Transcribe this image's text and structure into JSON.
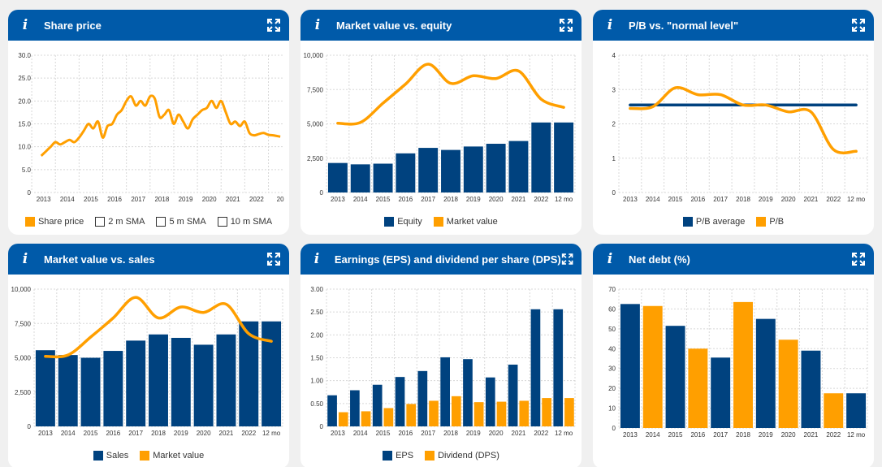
{
  "colors": {
    "navy": "#00427f",
    "orange": "#ff9f00",
    "header": "#005aa9"
  },
  "cards": [
    {
      "title": "Share price",
      "chart_data": {
        "type": "line",
        "x_ticks": [
          "2013",
          "2014",
          "2015",
          "2016",
          "2017",
          "2018",
          "2019",
          "2020",
          "2021",
          "2022",
          "20"
        ],
        "y_ticks": [
          "0",
          "5.0",
          "10.0",
          "15.0",
          "20.0",
          "25.0",
          "30.0"
        ],
        "ylim": [
          0,
          30
        ],
        "series": [
          {
            "name": "Share price",
            "color": "#ff9f00",
            "type": "line",
            "x": [
              2012.9,
              2013.1,
              2013.3,
              2013.5,
              2013.7,
              2013.9,
              2014.1,
              2014.3,
              2014.5,
              2014.7,
              2014.9,
              2015.1,
              2015.3,
              2015.5,
              2015.7,
              2015.9,
              2016.1,
              2016.3,
              2016.5,
              2016.7,
              2016.9,
              2017.1,
              2017.3,
              2017.5,
              2017.7,
              2017.9,
              2018.1,
              2018.3,
              2018.5,
              2018.7,
              2018.9,
              2019.1,
              2019.3,
              2019.5,
              2019.7,
              2019.9,
              2020.1,
              2020.3,
              2020.5,
              2020.7,
              2020.9,
              2021.1,
              2021.3,
              2021.5,
              2021.7,
              2021.9,
              2022.1,
              2022.3,
              2022.5,
              2022.7,
              2022.9,
              2023.0
            ],
            "values": [
              8,
              9,
              10,
              11,
              10.5,
              11,
              11.5,
              11,
              12,
              13.5,
              15,
              14,
              15.5,
              12,
              14.5,
              15,
              17,
              18,
              20,
              21,
              19,
              20,
              19,
              21,
              20.5,
              16.5,
              17,
              18,
              15,
              17,
              15.5,
              14,
              16,
              17,
              18,
              18.5,
              20,
              18.5,
              20,
              17.5,
              15,
              15.5,
              14.5,
              15.5,
              13,
              12.5,
              12.8,
              13,
              12.6,
              12.5,
              12.3,
              12.2
            ]
          },
          {
            "name": "2 m SMA",
            "type": "hidden",
            "values": []
          },
          {
            "name": "5 m SMA",
            "type": "hidden",
            "values": []
          },
          {
            "name": "10 m SMA",
            "type": "hidden",
            "values": []
          }
        ]
      }
    },
    {
      "title": "Market value vs. equity",
      "chart_data": {
        "type": "bar",
        "categories": [
          "2013",
          "2014",
          "2015",
          "2016",
          "2017",
          "2018",
          "2019",
          "2020",
          "2021",
          "2022",
          "12 mo"
        ],
        "y_ticks": [
          "0",
          "2,500",
          "5,000",
          "7,500",
          "10,000"
        ],
        "ylim": [
          0,
          10000
        ],
        "series": [
          {
            "name": "Equity",
            "color": "#00427f",
            "type": "bar",
            "values": [
              2150,
              2050,
              2100,
              2850,
              3250,
              3100,
              3350,
              3550,
              3750,
              5100,
              5100
            ]
          },
          {
            "name": "Market value",
            "color": "#ff9f00",
            "type": "line",
            "values": [
              5050,
              5100,
              6500,
              7900,
              9350,
              7950,
              8500,
              8300,
              8850,
              6800,
              6200
            ]
          }
        ]
      }
    },
    {
      "title": "P/B vs. \"normal level\"",
      "chart_data": {
        "type": "line",
        "categories": [
          "2013",
          "2014",
          "2015",
          "2016",
          "2017",
          "2018",
          "2019",
          "2020",
          "2021",
          "2022",
          "12 mo"
        ],
        "y_ticks": [
          "0",
          "1",
          "2",
          "3",
          "4"
        ],
        "ylim": [
          0,
          4
        ],
        "series": [
          {
            "name": "P/B average",
            "color": "#00427f",
            "type": "line",
            "values": [
              2.55,
              2.55,
              2.55,
              2.55,
              2.55,
              2.55,
              2.55,
              2.55,
              2.55,
              2.55,
              2.55
            ]
          },
          {
            "name": "P/B",
            "color": "#ff9f00",
            "type": "line",
            "values": [
              2.45,
              2.5,
              3.05,
              2.85,
              2.85,
              2.55,
              2.55,
              2.35,
              2.35,
              1.25,
              1.2
            ]
          }
        ]
      }
    },
    {
      "title": "Market value vs. sales",
      "chart_data": {
        "type": "bar",
        "categories": [
          "2013",
          "2014",
          "2015",
          "2016",
          "2017",
          "2018",
          "2019",
          "2020",
          "2021",
          "2022",
          "12 mo"
        ],
        "y_ticks": [
          "0",
          "2,500",
          "5,000",
          "7,500",
          "10,000"
        ],
        "ylim": [
          0,
          10000
        ],
        "series": [
          {
            "name": "Sales",
            "color": "#00427f",
            "type": "bar",
            "values": [
              5550,
              5200,
              5000,
              5500,
              6250,
              6700,
              6450,
              5950,
              6700,
              7650,
              7650
            ]
          },
          {
            "name": "Market value",
            "color": "#ff9f00",
            "type": "line",
            "values": [
              5100,
              5200,
              6500,
              7900,
              9400,
              7900,
              8700,
              8300,
              8900,
              6750,
              6200
            ]
          }
        ]
      }
    },
    {
      "title": "Earnings (EPS) and dividend per share (DPS)",
      "chart_data": {
        "type": "bar",
        "categories": [
          "2013",
          "2014",
          "2015",
          "2016",
          "2017",
          "2018",
          "2019",
          "2020",
          "2021",
          "2022",
          "12 mo"
        ],
        "y_ticks": [
          "0",
          "0.50",
          "1.00",
          "1.50",
          "2.00",
          "2.50",
          "3.00"
        ],
        "ylim": [
          0,
          3
        ],
        "series": [
          {
            "name": "EPS",
            "color": "#00427f",
            "type": "bar",
            "values": [
              0.68,
              0.79,
              0.91,
              1.08,
              1.21,
              1.51,
              1.47,
              1.07,
              1.35,
              2.56,
              2.56
            ]
          },
          {
            "name": "Dividend (DPS)",
            "color": "#ff9f00",
            "type": "bar",
            "values": [
              0.31,
              0.33,
              0.4,
              0.49,
              0.56,
              0.66,
              0.53,
              0.54,
              0.56,
              0.62,
              0.62
            ]
          }
        ]
      }
    },
    {
      "title": "Net debt (%)",
      "chart_data": {
        "type": "bar",
        "categories": [
          "2013",
          "2014",
          "2015",
          "2016",
          "2017",
          "2018",
          "2019",
          "2020",
          "2021",
          "2022",
          "12 mo"
        ],
        "y_ticks": [
          "0",
          "10",
          "20",
          "30",
          "40",
          "50",
          "60",
          "70"
        ],
        "ylim": [
          0,
          70
        ],
        "series": [
          {
            "name": "Net debt (%)",
            "type": "bar",
            "values": [
              62.5,
              61.5,
              51.5,
              40,
              35.5,
              63.5,
              55,
              44.5,
              39,
              17.5,
              17.5
            ],
            "colors": [
              "#00427f",
              "#ff9f00",
              "#00427f",
              "#ff9f00",
              "#00427f",
              "#ff9f00",
              "#00427f",
              "#ff9f00",
              "#00427f",
              "#ff9f00",
              "#00427f"
            ]
          }
        ]
      }
    }
  ]
}
